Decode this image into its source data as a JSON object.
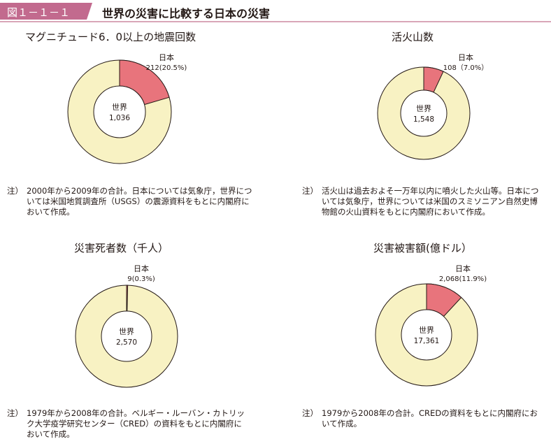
{
  "header": {
    "figure_number": "図１－１－１",
    "title": "世界の災害に比較する日本の災害"
  },
  "colors": {
    "world": "#f8f2c3",
    "japan": "#e8747c",
    "ring_stroke": "#231815",
    "tab": "#c26a8e"
  },
  "chart_data": [
    {
      "type": "pie",
      "title": "マグニチュード6．0以上の地震回数",
      "world_label": "世界",
      "world_value_text": "1,036",
      "japan_label": "日本",
      "japan_value_text": "212(20.5%)",
      "world_total": 1036,
      "japan_value": 212,
      "japan_share": 0.205,
      "note_mark": "注）",
      "note": "2000年から2009年の合計。日本については気象庁，世界については米国地質調査所（USGS）の震源資料をもとに内閣府において作成。"
    },
    {
      "type": "pie",
      "title": "活火山数",
      "world_label": "世界",
      "world_value_text": "1,548",
      "japan_label": "日本",
      "japan_value_text": "108（7.0%）",
      "world_total": 1548,
      "japan_value": 108,
      "japan_share": 0.07,
      "note_mark": "注）",
      "note": "活火山は過去およそ一万年以内に噴火した火山等。日本については気象庁，世界については米国のスミソニアン自然史博物館の火山資料をもとに内閣府において作成。"
    },
    {
      "type": "pie",
      "title": "災害死者数（千人）",
      "world_label": "世界",
      "world_value_text": "2,570",
      "japan_label": "日本",
      "japan_value_text": "9(0.3%)",
      "world_total": 2570,
      "japan_value": 9,
      "japan_share": 0.003,
      "note_mark": "注）",
      "note": "1979年から2008年の合計。ベルギー・ルーバン・カトリック大学疫学研究センター（CRED）の資料をもとに内閣府において作成。"
    },
    {
      "type": "pie",
      "title": "災害被害額(億ドル）",
      "world_label": "世界",
      "world_value_text": "17,361",
      "japan_label": "日本",
      "japan_value_text": "2,068(11.9%)",
      "world_total": 17361,
      "japan_value": 2068,
      "japan_share": 0.119,
      "note_mark": "注）",
      "note": "1979から2008年の合計。CREDの資料をもとに内閣府において作成。"
    }
  ]
}
